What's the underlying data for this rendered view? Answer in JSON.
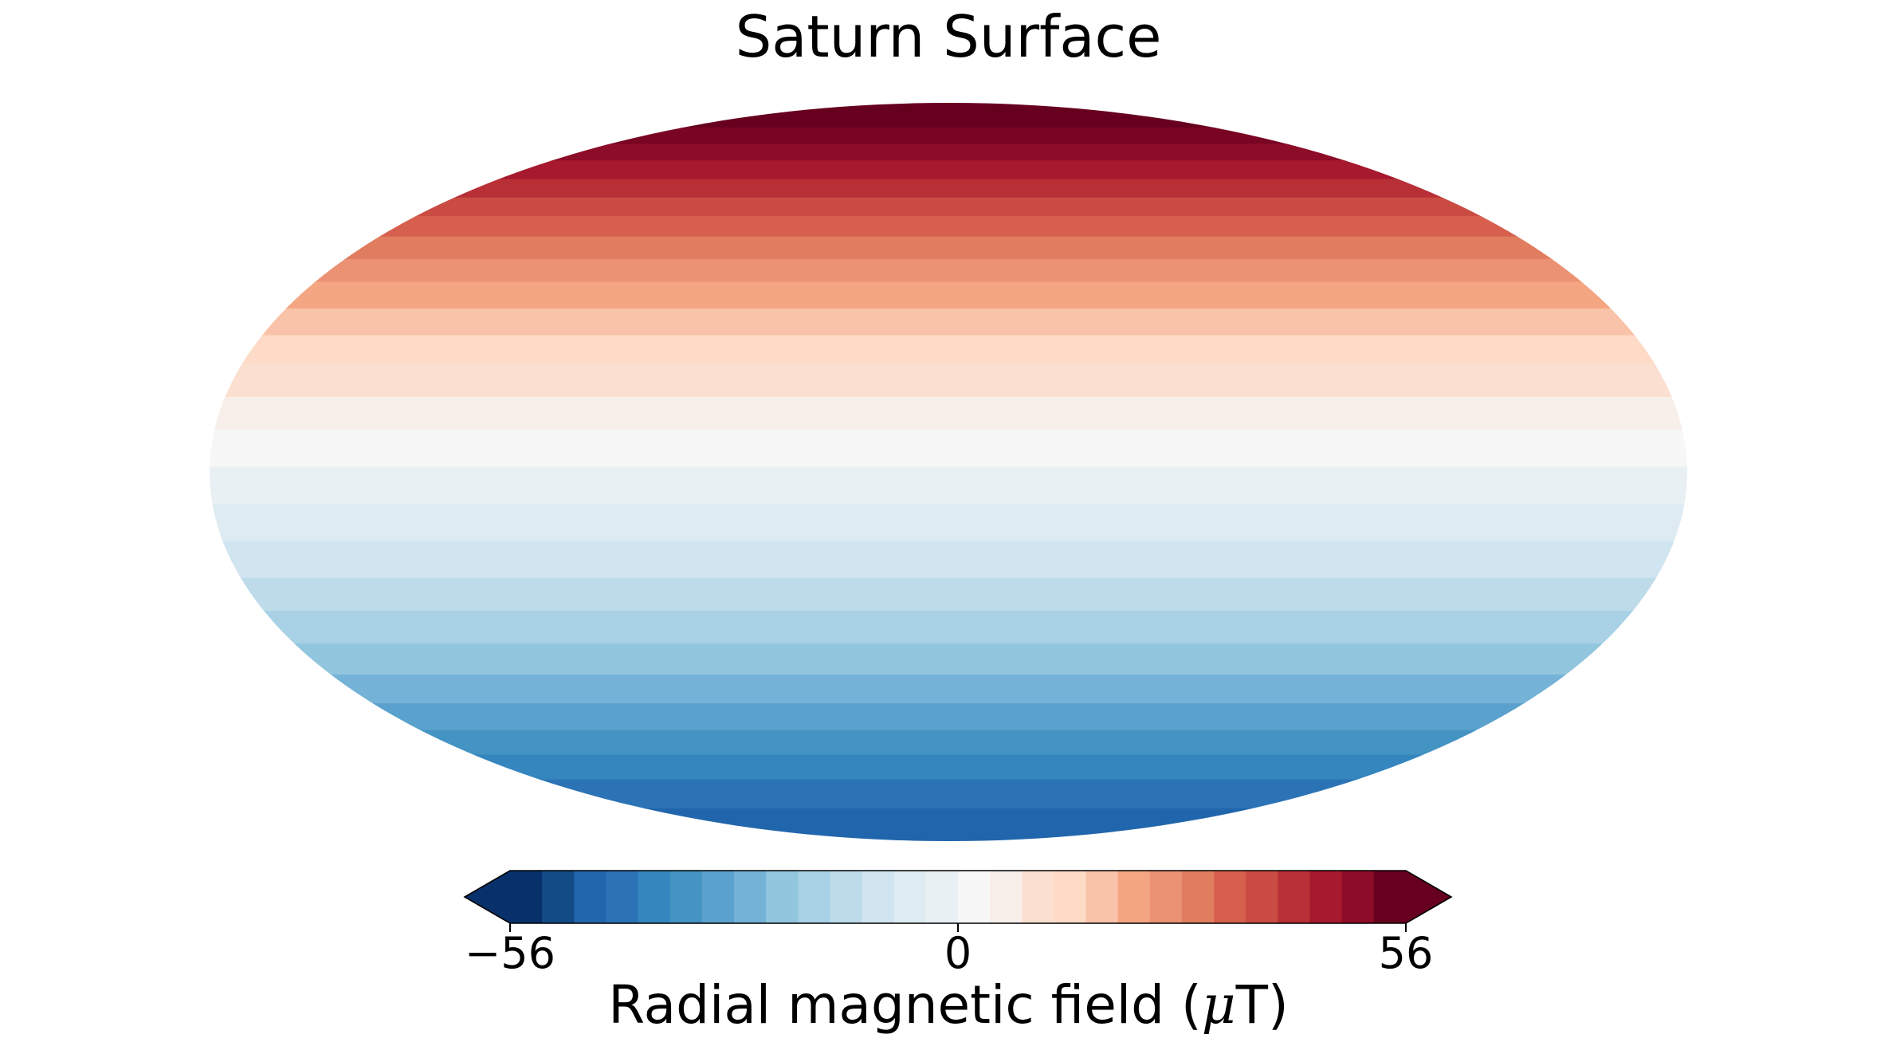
{
  "chart_data": {
    "type": "heatmap",
    "title": "Saturn  Surface",
    "projection": "mollweide",
    "pattern": "zonal bands, field increasing from south to north",
    "colormap": "RdBu_r",
    "colorbar": {
      "label_prefix": "Radial magnetic field (",
      "label_math": "μ",
      "label_suffix": "T)",
      "vmin": -56,
      "vmax": 56,
      "ticks": [
        {
          "value": -56,
          "label": "−56"
        },
        {
          "value": 0,
          "label": "0"
        },
        {
          "value": 56,
          "label": "56"
        }
      ],
      "extend": "both",
      "placement": "bottom",
      "colors": [
        "#08306b",
        "#134b87",
        "#2166ac",
        "#2b73b5",
        "#3585bf",
        "#4393c3",
        "#5aa2cd",
        "#74b2d7",
        "#92c5de",
        "#a8d1e6",
        "#bedbea",
        "#d1e5f0",
        "#deebf2",
        "#e9f0f4",
        "#f7f7f7",
        "#f8efea",
        "#fbe0d2",
        "#fddbc7",
        "#f8c3a8",
        "#f4a582",
        "#ea9273",
        "#e07d5f",
        "#d6604d",
        "#c94b42",
        "#b82f36",
        "#a6192e",
        "#8d0c27",
        "#67001f"
      ]
    },
    "bands_north_to_south": [
      "#67001f",
      "#7a0523",
      "#8d0c27",
      "#a6192e",
      "#b82f36",
      "#c94b42",
      "#d6604d",
      "#e07d5f",
      "#ea9273",
      "#f4a582",
      "#f8c3a8",
      "#fddbc7",
      "#fbe0d2",
      "#f8efea",
      "#f7f7f7",
      "#e9f0f4",
      "#deebf2",
      "#d1e5f0",
      "#bedbea",
      "#a8d1e6",
      "#92c5de",
      "#74b2d7",
      "#5aa2cd",
      "#4393c3",
      "#3585bf",
      "#2b73b5",
      "#2166ac"
    ],
    "band_weights_north_to_south": [
      1.2,
      0.8,
      0.8,
      0.9,
      0.9,
      0.9,
      1.0,
      1.1,
      1.1,
      1.3,
      1.3,
      1.4,
      1.6,
      1.6,
      1.8,
      1.8,
      1.8,
      1.8,
      1.6,
      1.6,
      1.5,
      1.4,
      1.3,
      1.2,
      1.2,
      1.4,
      1.6
    ]
  }
}
